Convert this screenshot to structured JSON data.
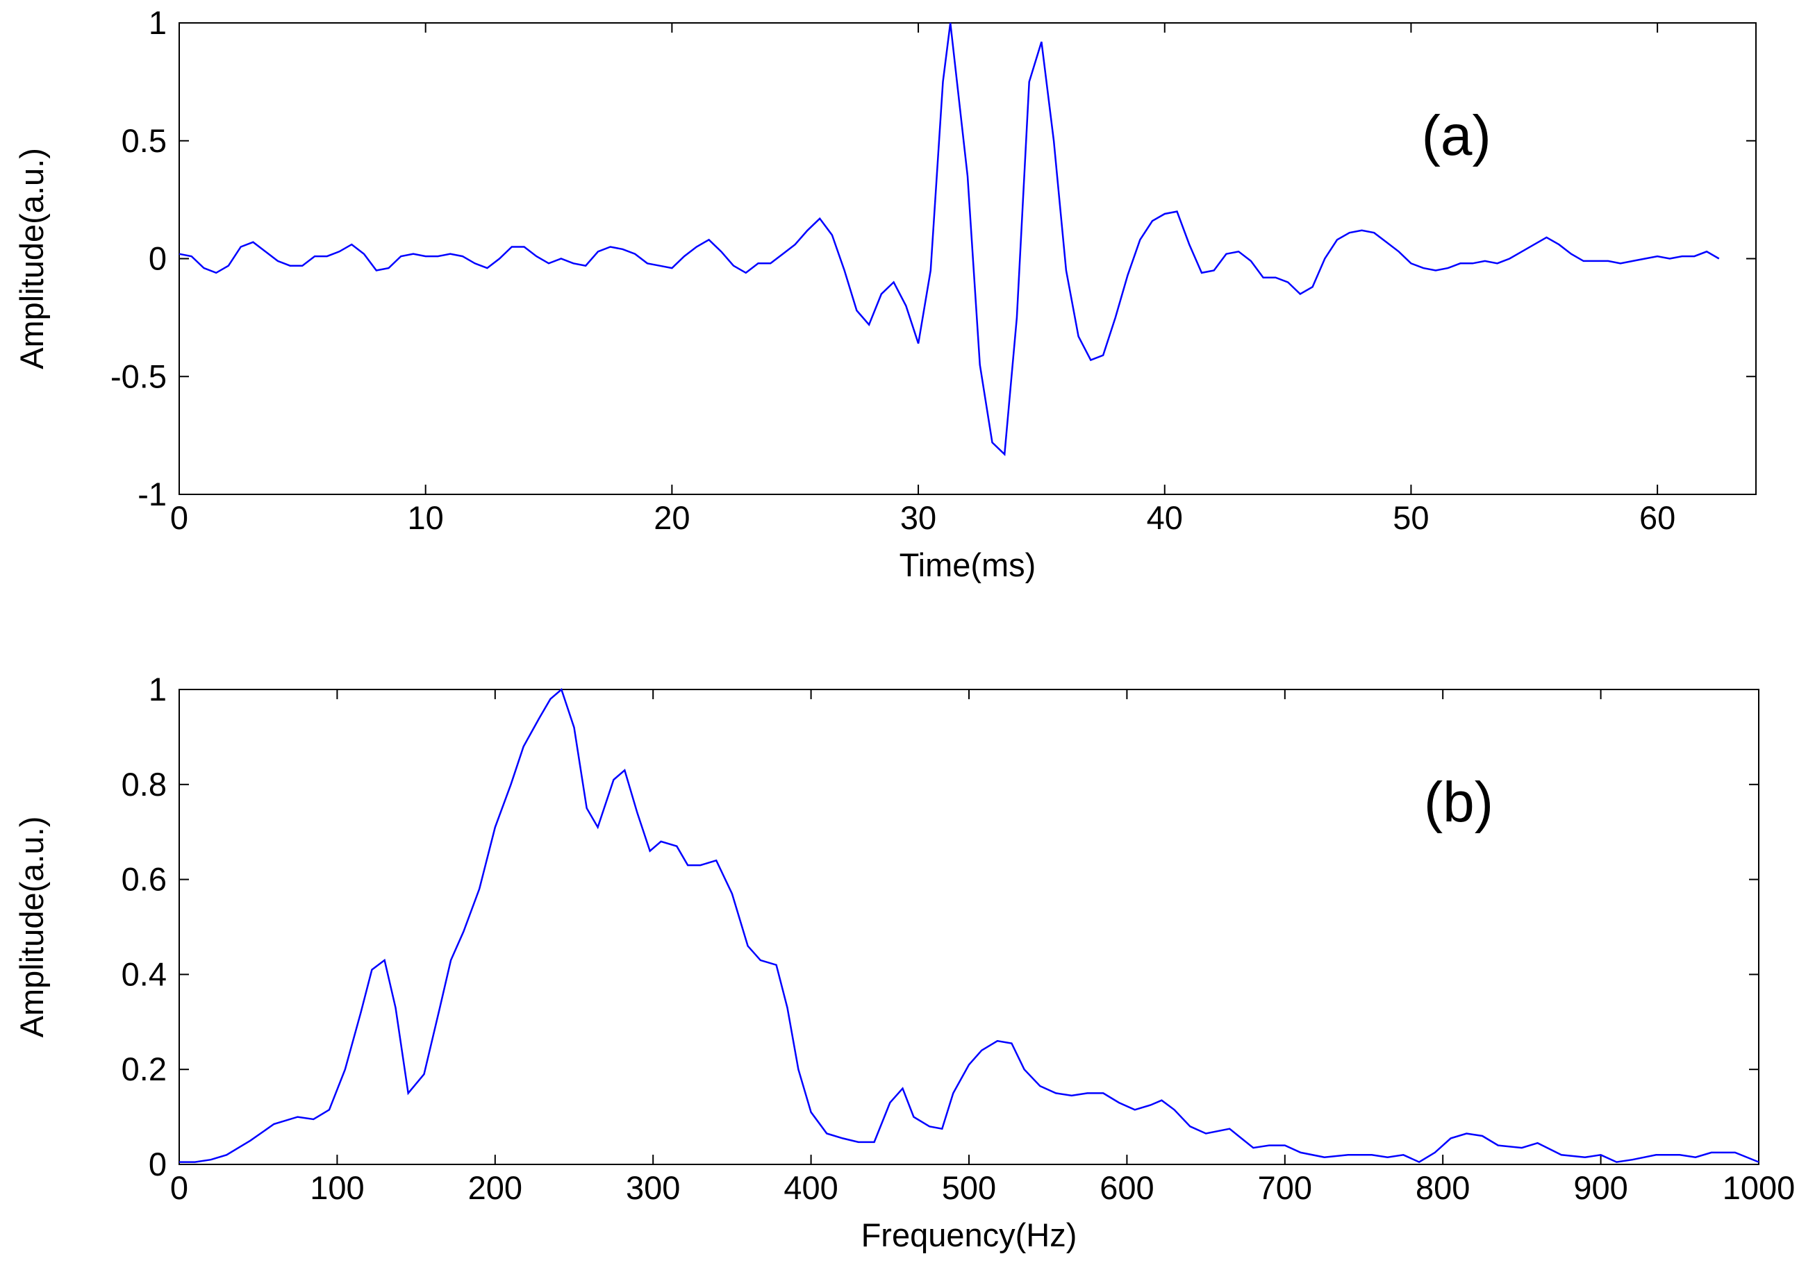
{
  "chart_data": [
    {
      "type": "line",
      "annotation": "(a)",
      "x_label": "Time(ms)",
      "y_label": "Amplitude(a.u.)",
      "xlim": [
        0,
        64
      ],
      "xticks": [
        0,
        10,
        20,
        30,
        40,
        50,
        60
      ],
      "ylim": [
        -1,
        1
      ],
      "yticks": [
        -1,
        -0.5,
        0,
        0.5,
        1
      ],
      "grid": false,
      "series": [
        {
          "color": "#0000ff",
          "x": [
            0,
            0.5,
            1,
            1.5,
            2,
            2.5,
            3,
            3.5,
            4,
            4.5,
            5,
            5.5,
            6,
            6.5,
            7,
            7.5,
            8,
            8.5,
            9,
            9.5,
            10,
            10.5,
            11,
            11.5,
            12,
            12.5,
            13,
            13.5,
            14,
            14.5,
            15,
            15.5,
            16,
            16.5,
            17,
            17.5,
            18,
            18.5,
            19,
            19.5,
            20,
            20.5,
            21,
            21.5,
            22,
            22.5,
            23,
            23.5,
            24,
            24.5,
            25,
            25.5,
            26,
            26.5,
            27,
            27.5,
            28,
            28.5,
            29,
            29.5,
            30,
            30.5,
            31,
            31.3,
            32,
            32.5,
            33,
            33.5,
            34,
            34.5,
            35,
            35.5,
            36,
            36.5,
            37,
            37.5,
            38,
            38.5,
            39,
            39.5,
            40,
            40.5,
            41,
            41.5,
            42,
            42.5,
            43,
            43.5,
            44,
            44.5,
            45,
            45.5,
            46,
            46.5,
            47,
            47.5,
            48,
            48.5,
            49,
            49.5,
            50,
            50.5,
            51,
            51.5,
            52,
            52.5,
            53,
            53.5,
            54,
            54.5,
            55,
            55.5,
            56,
            56.5,
            57,
            57.5,
            58,
            58.5,
            59,
            59.5,
            60,
            60.5,
            61,
            61.5,
            62,
            62.5
          ],
          "values": [
            0.02,
            0.01,
            -0.04,
            -0.06,
            -0.03,
            0.05,
            0.07,
            0.03,
            -0.01,
            -0.03,
            -0.03,
            0.01,
            0.01,
            0.03,
            0.06,
            0.02,
            -0.05,
            -0.04,
            0.01,
            0.02,
            0.01,
            0.01,
            0.02,
            0.01,
            -0.02,
            -0.04,
            0,
            0.05,
            0.05,
            0.01,
            -0.02,
            0,
            -0.02,
            -0.03,
            0.03,
            0.05,
            0.04,
            0.02,
            -0.02,
            -0.03,
            -0.04,
            0.01,
            0.05,
            0.08,
            0.03,
            -0.03,
            -0.06,
            -0.02,
            -0.02,
            0.02,
            0.06,
            0.12,
            0.17,
            0.1,
            -0.05,
            -0.22,
            -0.28,
            -0.15,
            -0.1,
            -0.2,
            -0.36,
            -0.05,
            0.75,
            1,
            0.35,
            -0.45,
            -0.78,
            -0.83,
            -0.25,
            0.75,
            0.92,
            0.5,
            -0.05,
            -0.33,
            -0.43,
            -0.41,
            -0.25,
            -0.07,
            0.08,
            0.16,
            0.19,
            0.2,
            0.06,
            -0.06,
            -0.05,
            0.02,
            0.03,
            -0.01,
            -0.08,
            -0.08,
            -0.1,
            -0.15,
            -0.12,
            0,
            0.08,
            0.11,
            0.12,
            0.11,
            0.07,
            0.03,
            -0.02,
            -0.04,
            -0.05,
            -0.04,
            -0.02,
            -0.02,
            -0.01,
            -0.02,
            0,
            0.03,
            0.06,
            0.09,
            0.06,
            0.02,
            -0.01,
            -0.01,
            -0.01,
            -0.02,
            -0.01,
            0,
            0.01,
            0,
            0.01,
            0.01,
            0.03,
            0
          ]
        }
      ]
    },
    {
      "type": "line",
      "annotation": "(b)",
      "x_label": "Frequency(Hz)",
      "y_label": "Amplitude(a.u.)",
      "xlim": [
        0,
        1000
      ],
      "xticks": [
        0,
        100,
        200,
        300,
        400,
        500,
        600,
        700,
        800,
        900,
        1000
      ],
      "ylim": [
        0,
        1
      ],
      "yticks": [
        0,
        0.2,
        0.4,
        0.6,
        0.8,
        1
      ],
      "grid": false,
      "series": [
        {
          "color": "#0000ff",
          "x": [
            0,
            10,
            20,
            30,
            45,
            60,
            75,
            85,
            95,
            105,
            115,
            122,
            130,
            137,
            145,
            155,
            165,
            172,
            180,
            190,
            200,
            210,
            218,
            228,
            235,
            242,
            250,
            258,
            265,
            275,
            282,
            290,
            298,
            305,
            315,
            322,
            330,
            340,
            350,
            360,
            368,
            378,
            385,
            392,
            400,
            410,
            420,
            430,
            440,
            450,
            458,
            465,
            475,
            483,
            490,
            500,
            508,
            518,
            527,
            535,
            545,
            555,
            565,
            575,
            585,
            595,
            605,
            615,
            622,
            630,
            640,
            650,
            665,
            680,
            690,
            700,
            710,
            725,
            740,
            755,
            765,
            775,
            785,
            795,
            805,
            815,
            825,
            835,
            850,
            860,
            875,
            890,
            900,
            910,
            920,
            935,
            950,
            960,
            970,
            985,
            1000
          ],
          "values": [
            0.005,
            0.005,
            0.01,
            0.02,
            0.05,
            0.085,
            0.1,
            0.095,
            0.115,
            0.2,
            0.32,
            0.41,
            0.43,
            0.33,
            0.15,
            0.19,
            0.33,
            0.43,
            0.49,
            0.58,
            0.71,
            0.8,
            0.88,
            0.94,
            0.98,
            1,
            0.92,
            0.75,
            0.71,
            0.81,
            0.83,
            0.74,
            0.66,
            0.68,
            0.67,
            0.63,
            0.63,
            0.64,
            0.57,
            0.46,
            0.43,
            0.42,
            0.33,
            0.2,
            0.11,
            0.065,
            0.055,
            0.047,
            0.047,
            0.13,
            0.16,
            0.1,
            0.08,
            0.075,
            0.15,
            0.21,
            0.24,
            0.26,
            0.255,
            0.2,
            0.165,
            0.15,
            0.145,
            0.15,
            0.15,
            0.13,
            0.115,
            0.125,
            0.135,
            0.115,
            0.08,
            0.065,
            0.075,
            0.035,
            0.04,
            0.04,
            0.025,
            0.015,
            0.02,
            0.02,
            0.015,
            0.02,
            0.005,
            0.025,
            0.055,
            0.065,
            0.06,
            0.04,
            0.035,
            0.045,
            0.02,
            0.015,
            0.02,
            0.005,
            0.01,
            0.02,
            0.02,
            0.015,
            0.025,
            0.025,
            0.005
          ]
        }
      ]
    }
  ]
}
